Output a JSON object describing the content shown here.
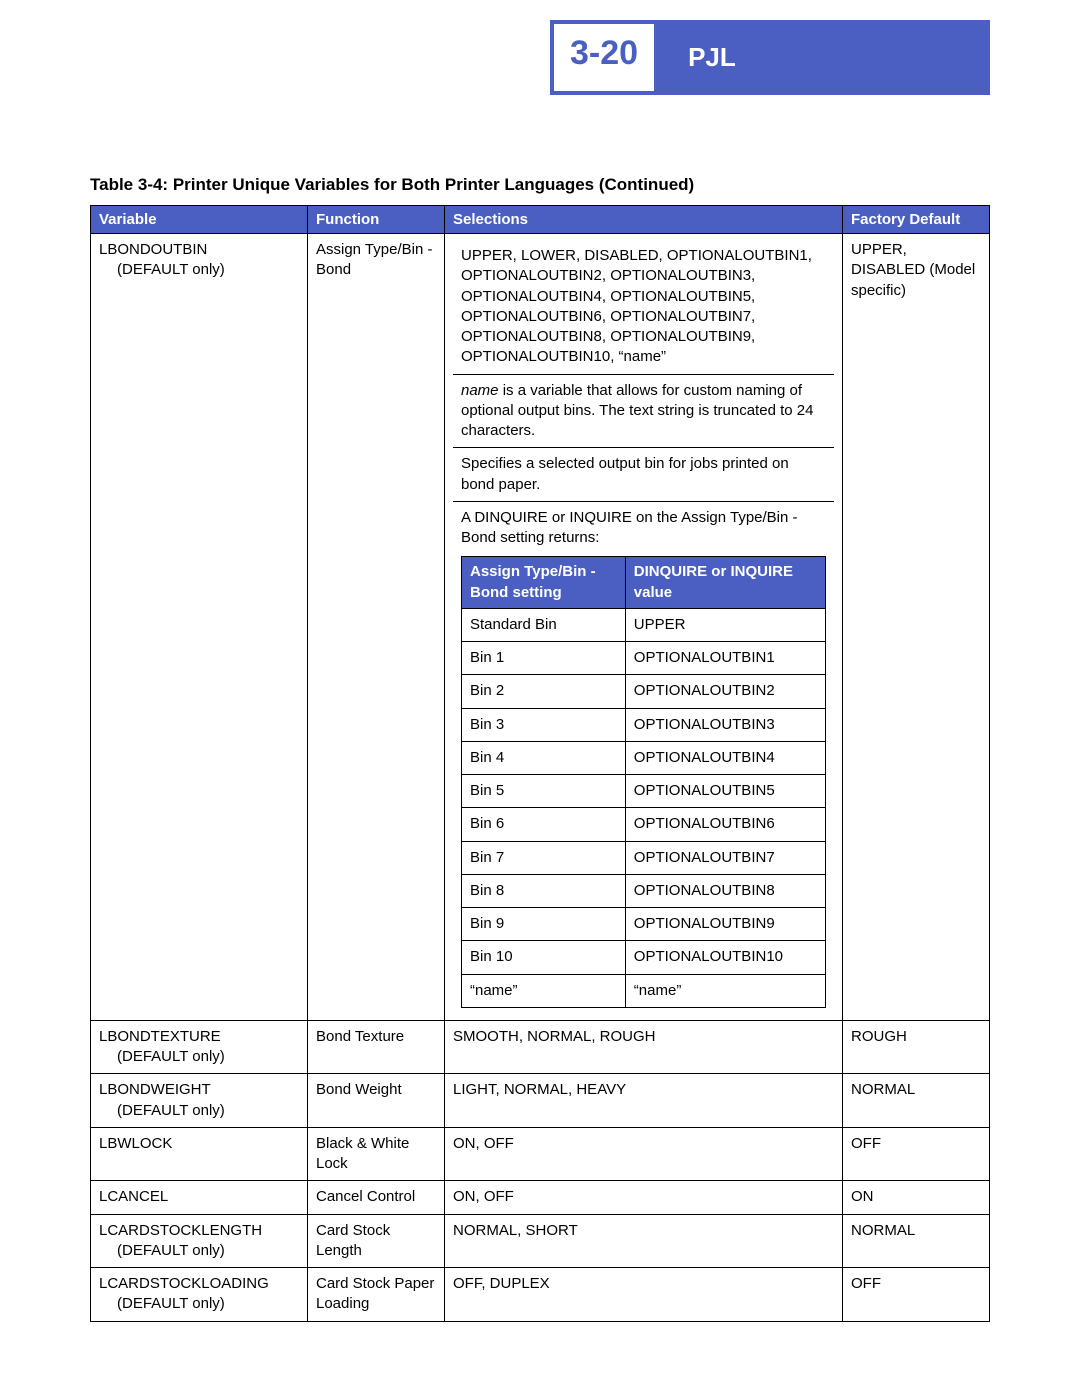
{
  "header": {
    "page_num": "3-20",
    "section": "PJL"
  },
  "caption": "Table 3-4:  Printer Unique Variables for Both Printer Languages (Continued)",
  "columns": {
    "variable": "Variable",
    "function": "Function",
    "selections": "Selections",
    "factory_default": "Factory Default"
  },
  "row1": {
    "var_main": "LBONDOUTBIN",
    "var_sub": "(DEFAULT only)",
    "func": "Assign Type/Bin - Bond",
    "sel_list": "UPPER, LOWER, DISABLED, OPTIONALOUTBIN1, OPTIONALOUTBIN2, OPTIONALOUTBIN3, OPTIONALOUTBIN4, OPTIONALOUTBIN5, OPTIONALOUTBIN6, OPTIONALOUTBIN7, OPTIONALOUTBIN8, OPTIONALOUTBIN9, OPTIONALOUTBIN10, “name”",
    "name_note_prefix": "name",
    "name_note_rest": " is a variable that allows for custom naming of optional output bins. The text string is truncated to 24 characters.",
    "spec_note": "Specifies a selected output bin for jobs printed on bond paper.",
    "dinq_note": "A DINQUIRE or INQUIRE on the Assign Type/Bin - Bond setting returns:",
    "inner_h1": "Assign Type/Bin - Bond setting",
    "inner_h2": "DINQUIRE or INQUIRE value",
    "inner_rows": [
      [
        "Standard Bin",
        "UPPER"
      ],
      [
        "Bin 1",
        "OPTIONALOUTBIN1"
      ],
      [
        "Bin 2",
        "OPTIONALOUTBIN2"
      ],
      [
        "Bin 3",
        "OPTIONALOUTBIN3"
      ],
      [
        "Bin 4",
        "OPTIONALOUTBIN4"
      ],
      [
        "Bin 5",
        "OPTIONALOUTBIN5"
      ],
      [
        "Bin 6",
        "OPTIONALOUTBIN6"
      ],
      [
        "Bin 7",
        "OPTIONALOUTBIN7"
      ],
      [
        "Bin 8",
        "OPTIONALOUTBIN8"
      ],
      [
        "Bin 9",
        "OPTIONALOUTBIN9"
      ],
      [
        "Bin 10",
        "OPTIONALOUTBIN10"
      ],
      [
        "“name”",
        "“name”"
      ]
    ],
    "def": "UPPER, DISABLED (Model specific)"
  },
  "rows_simple": [
    {
      "var_main": "LBONDTEXTURE",
      "var_sub": "(DEFAULT only)",
      "func": "Bond Texture",
      "sel": "SMOOTH, NORMAL, ROUGH",
      "def": "ROUGH"
    },
    {
      "var_main": "LBONDWEIGHT",
      "var_sub": "(DEFAULT only)",
      "func": "Bond Weight",
      "sel": "LIGHT, NORMAL, HEAVY",
      "def": "NORMAL"
    },
    {
      "var_main": "LBWLOCK",
      "var_sub": "",
      "func": "Black & White Lock",
      "sel": "ON, OFF",
      "def": "OFF"
    },
    {
      "var_main": "LCANCEL",
      "var_sub": "",
      "func": "Cancel Control",
      "sel": "ON, OFF",
      "def": "ON"
    },
    {
      "var_main": "LCARDSTOCKLENGTH",
      "var_sub": "(DEFAULT only)",
      "func": "Card Stock Length",
      "sel": "NORMAL, SHORT",
      "def": "NORMAL"
    },
    {
      "var_main": "LCARDSTOCKLOADING",
      "var_sub": "(DEFAULT only)",
      "func": "Card Stock Paper Loading",
      "sel": "OFF, DUPLEX",
      "def": "OFF"
    }
  ]
}
